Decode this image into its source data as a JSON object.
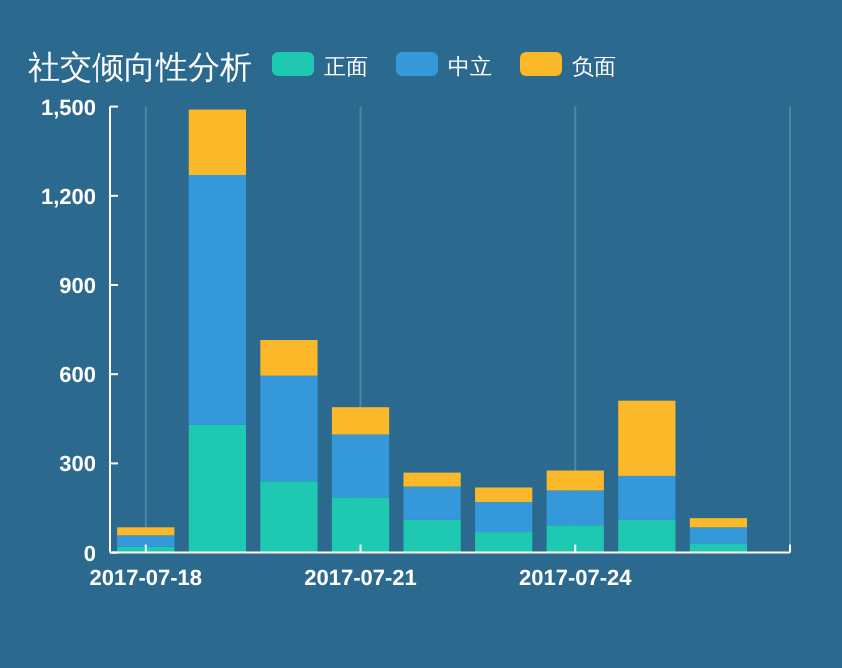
{
  "chart_data": {
    "type": "bar",
    "title": "社交倾向性分析",
    "stacked": true,
    "legend": "top",
    "grid": "x",
    "x": [
      "2017-07-18",
      "2017-07-19",
      "2017-07-20",
      "2017-07-21",
      "2017-07-22",
      "2017-07-23",
      "2017-07-24",
      "2017-07-25",
      "2017-07-26"
    ],
    "series": [
      {
        "name": "正面",
        "color": "#1fc8b0",
        "values": [
          20,
          430,
          240,
          186,
          110,
          69,
          92,
          110,
          31
        ]
      },
      {
        "name": "中立",
        "color": "#3498db",
        "values": [
          38,
          840,
          355,
          211,
          112,
          101,
          117,
          148,
          54
        ]
      },
      {
        "name": "负面",
        "color": "#fbb829",
        "values": [
          27,
          220,
          120,
          92,
          47,
          49,
          67,
          253,
          31
        ]
      }
    ],
    "xlim": [
      "2017-07-17T12:00",
      "2017-07-27"
    ],
    "xticks": [
      "2017-07-18",
      "2017-07-21",
      "2017-07-24"
    ],
    "ylim": [
      0,
      1500
    ],
    "yticks": [
      0,
      300,
      600,
      900,
      {
        "value": 1200,
        "label": "1,200"
      },
      {
        "value": 1500,
        "label": "1,500"
      }
    ]
  }
}
